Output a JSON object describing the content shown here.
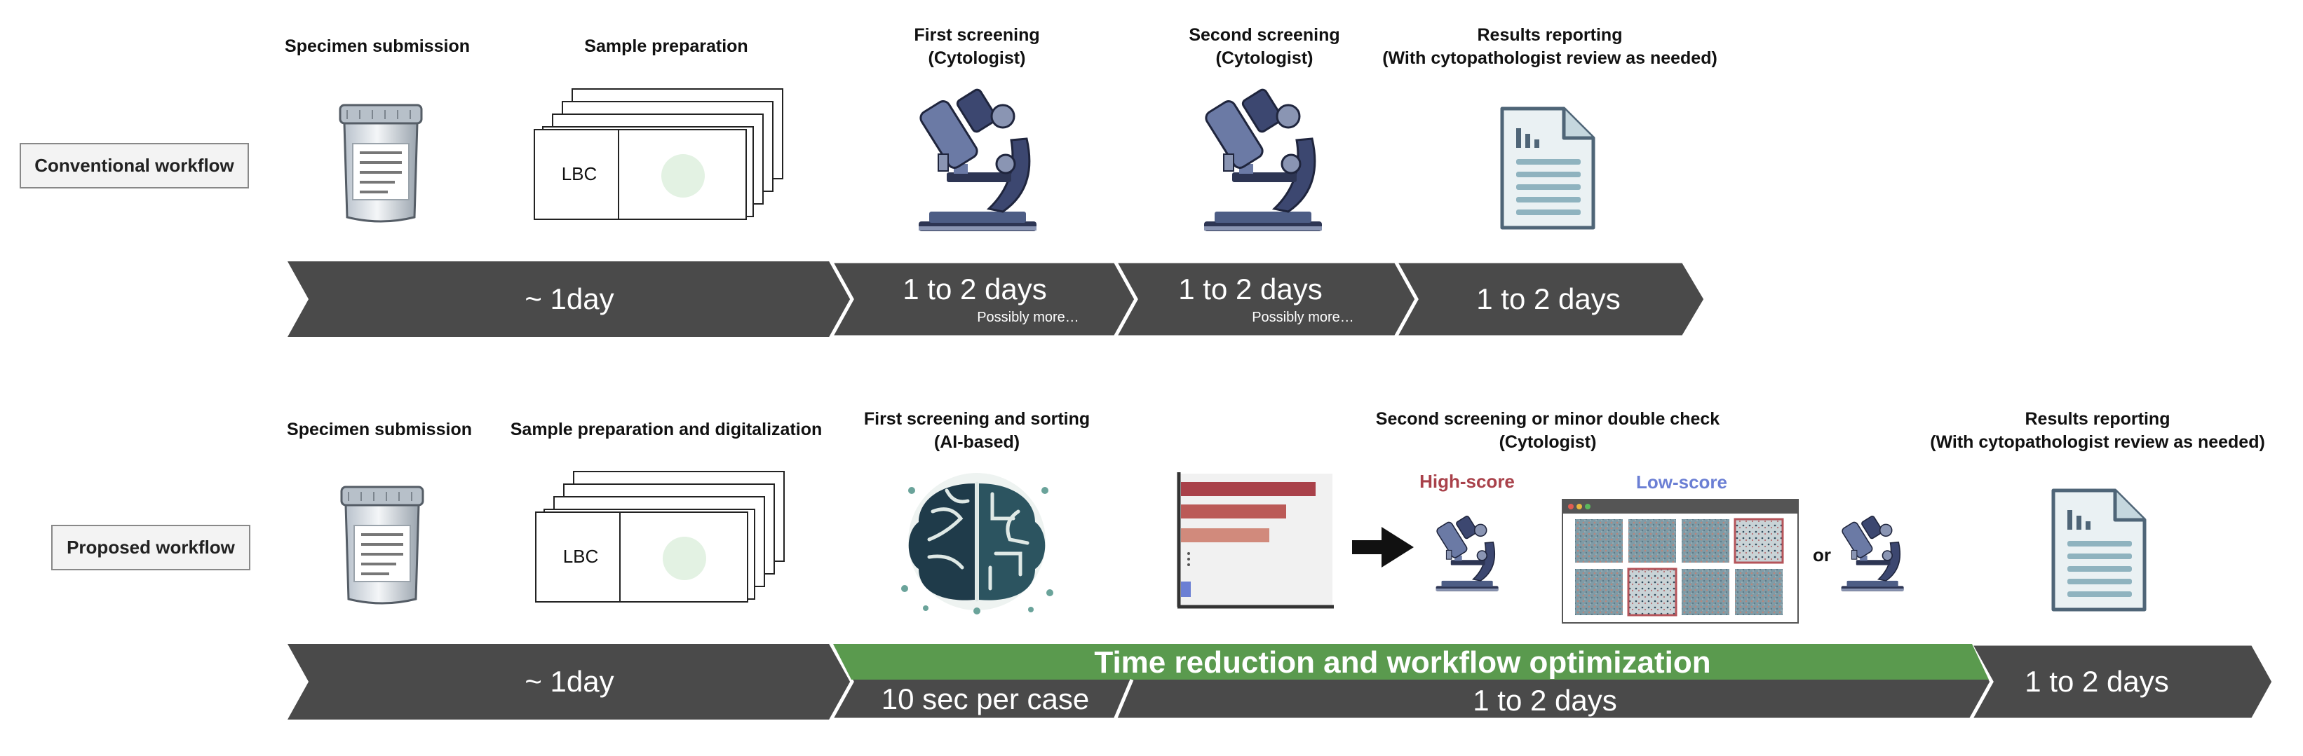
{
  "conventional": {
    "label": "Conventional workflow",
    "stages": [
      {
        "line1": "Specimen submission",
        "line2": ""
      },
      {
        "line1": "Sample preparation",
        "line2": ""
      },
      {
        "line1": "First screening",
        "line2": "(Cytologist)"
      },
      {
        "line1": "Second screening",
        "line2": "(Cytologist)"
      },
      {
        "line1": "Results reporting",
        "line2": "(With cytopathologist review as needed)"
      }
    ],
    "slide_label": "LBC",
    "timeline": [
      {
        "text": "~ 1day",
        "note": ""
      },
      {
        "text": "1 to 2 days",
        "note": "Possibly more…"
      },
      {
        "text": "1 to 2 days",
        "note": "Possibly more…"
      },
      {
        "text": "1 to 2 days",
        "note": ""
      }
    ]
  },
  "proposed": {
    "label": "Proposed workflow",
    "stages": [
      {
        "line1": "Specimen submission",
        "line2": ""
      },
      {
        "line1": "Sample preparation and digitalization",
        "line2": ""
      },
      {
        "line1": "First screening and sorting",
        "line2": "(AI-based)"
      },
      {
        "line1": "Second screening or minor double check",
        "line2": "(Cytologist)"
      },
      {
        "line1": "Results reporting",
        "line2": "(With cytopathologist review as needed)"
      }
    ],
    "slide_label": "LBC",
    "high_score_label": "High-score",
    "low_score_label": "Low-score",
    "or_label": "or",
    "highlight_text": "Time reduction and workflow optimization",
    "timeline": [
      {
        "text": "~ 1day"
      },
      {
        "text": "10 sec per case"
      },
      {
        "text": "1 to 2 days"
      },
      {
        "text": "1 to 2 days"
      }
    ]
  },
  "colors": {
    "arrow": "#4a4a4a",
    "highlight": "#5a9a4e",
    "high_score": "#a9414a",
    "low_score": "#6b7fd4",
    "icon_navy": "#2d3553"
  },
  "icons": [
    "specimen-container-icon",
    "lbc-slide-stack-icon",
    "microscope-icon",
    "report-document-icon",
    "ai-brain-icon",
    "score-bar-chart-icon",
    "right-arrow-icon",
    "slide-viewer-window-icon"
  ]
}
